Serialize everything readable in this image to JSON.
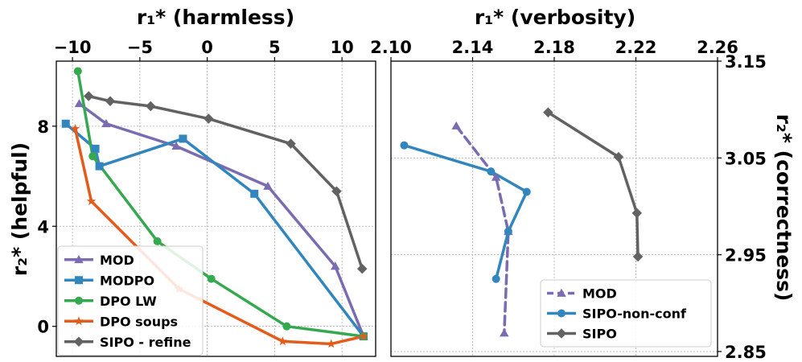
{
  "chart_data": [
    {
      "type": "line",
      "xlabel": "r₁* (harmless)",
      "ylabel": "r₂* (helpful)",
      "xlim": [
        -11.2,
        12.5
      ],
      "ylim": [
        -1.2,
        10.6
      ],
      "xticks": [
        -10,
        -5,
        0,
        5,
        10
      ],
      "xtick_labels": [
        "−10",
        "−5",
        "0",
        "5",
        "10"
      ],
      "yticks": [
        0,
        4,
        8
      ],
      "ytick_labels": [
        "0",
        "4",
        "8"
      ],
      "grid": true,
      "legend_position": "lower-left",
      "series": [
        {
          "name": "MOD",
          "color": "#7b6bb0",
          "marker": "triangle",
          "dash": "solid",
          "x": [
            -9.5,
            -7.5,
            -2.3,
            4.5,
            9.5,
            11.6
          ],
          "y": [
            8.9,
            8.1,
            7.2,
            5.6,
            2.4,
            -0.4
          ]
        },
        {
          "name": "MODPO",
          "color": "#3286bd",
          "marker": "square",
          "dash": "solid",
          "x": [
            -10.5,
            -8.3,
            -8.0,
            -1.8,
            3.5,
            11.6
          ],
          "y": [
            8.1,
            7.1,
            6.4,
            7.5,
            5.3,
            -0.4
          ]
        },
        {
          "name": "DPO LW",
          "color": "#36a850",
          "marker": "circle",
          "dash": "solid",
          "x": [
            -9.6,
            -8.5,
            -3.7,
            0.3,
            5.9,
            11.6
          ],
          "y": [
            10.2,
            6.8,
            3.4,
            1.9,
            0.0,
            -0.4
          ]
        },
        {
          "name": "DPO soups",
          "color": "#e35c1b",
          "marker": "star",
          "dash": "solid",
          "x": [
            -9.8,
            -8.6,
            -2.1,
            5.6,
            9.2,
            11.6
          ],
          "y": [
            7.9,
            5.0,
            1.5,
            -0.6,
            -0.7,
            -0.4
          ]
        },
        {
          "name": "SIPO - refine",
          "color": "#626262",
          "marker": "diamond",
          "dash": "solid",
          "x": [
            -8.8,
            -7.2,
            -4.2,
            0.1,
            6.2,
            9.6,
            11.5
          ],
          "y": [
            9.2,
            9.0,
            8.8,
            8.3,
            7.3,
            5.4,
            2.3
          ]
        }
      ]
    },
    {
      "type": "line",
      "xlabel": "r₁* (verbosity)",
      "ylabel": "r₂* (correctness)",
      "xlim": [
        2.1,
        2.26
      ],
      "ylim": [
        2.845,
        3.15
      ],
      "xticks": [
        2.1,
        2.14,
        2.18,
        2.22,
        2.26
      ],
      "xtick_labels": [
        "2.10",
        "2.14",
        "2.18",
        "2.22",
        "2.26"
      ],
      "yticks": [
        2.85,
        2.95,
        3.05,
        3.15
      ],
      "ytick_labels": [
        "2.85",
        "2.95",
        "3.05",
        "3.15"
      ],
      "grid": true,
      "legend_position": "lower-right",
      "series": [
        {
          "name": "MOD",
          "color": "#7b6bb0",
          "marker": "triangle",
          "dash": "dashed",
          "x": [
            2.132,
            2.1515,
            2.1575,
            2.1555
          ],
          "y": [
            3.083,
            3.03,
            2.974,
            2.869
          ]
        },
        {
          "name": "SIPO-non-conf",
          "color": "#3286bd",
          "marker": "circle",
          "dash": "solid",
          "x": [
            2.1065,
            2.149,
            2.1665,
            2.1575,
            2.1515
          ],
          "y": [
            3.063,
            3.036,
            3.015,
            2.974,
            2.925
          ]
        },
        {
          "name": "SIPO",
          "color": "#626262",
          "marker": "diamond",
          "dash": "solid",
          "x": [
            2.177,
            2.2115,
            2.2205,
            2.221
          ],
          "y": [
            3.097,
            3.051,
            2.993,
            2.948
          ]
        }
      ]
    }
  ]
}
